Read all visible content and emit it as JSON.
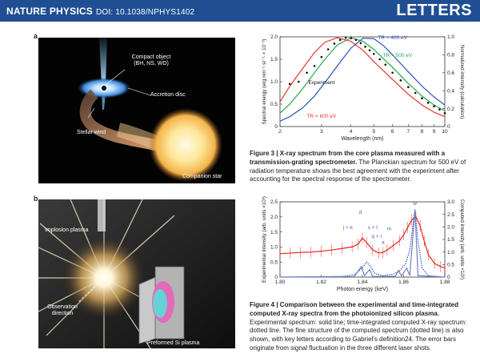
{
  "header": {
    "journal": "NATURE PHYSICS",
    "doi": "DOI: 10.1038/NPHYS1402",
    "section": "LETTERS",
    "bg_color": "#1f4e93"
  },
  "panel_a": {
    "label": "a",
    "compact_object": "Compact object\n(BH, NS, WD)",
    "accretion_disc": "Accretion disc",
    "stellar_wind": "Stellar wind",
    "companion_star": "Companion star"
  },
  "panel_b": {
    "label": "b",
    "implosion_plasma": "Implosion plasma",
    "observation_direction": "Observation\ndirection",
    "preformed_plasma": "Preformed Si plasma"
  },
  "figure3": {
    "caption_title": "Figure 3 | X-ray spectrum from the core plasma measured with a transmission-grating spectrometer.",
    "caption_body": " The Planckian spectrum for 500 eV of radiation temperature shows the best agreement with the experiment after accounting for the spectral response of the spectrometer."
  },
  "figure4": {
    "caption_title": "Figure 4 | Comparison between the experimental and time-integrated computed X-ray spectra from the photoionized silicon plasma.",
    "caption_body": " Experimental spectrum: solid line; time-integrated computed X-ray spectrum: dotted line. The fine structure of the computed spectrum (dotted line) is also shown, with key letters according to Gabriel's definition24. The error bars originate from signal fluctuation in the three different laser shots."
  },
  "chart_data": [
    {
      "type": "line",
      "xlabel": "Wavelength (nm)",
      "ylabel": "Spectral energy (erg nm⁻¹ sr⁻¹ × 10⁻³)",
      "y2label": "Normalized intensity (calculation)",
      "x_scale": "log",
      "xlim": [
        2,
        10
      ],
      "ylim": [
        0,
        2.0
      ],
      "y2lim": [
        0,
        1.0
      ],
      "x_ticks": [
        2,
        3,
        4,
        5,
        6,
        7,
        8,
        9,
        10
      ],
      "y_ticks": [
        "0",
        "0.5",
        "1.0",
        "1.5",
        "2.0"
      ],
      "y2_ticks": [
        "0",
        "0.2",
        "0.4",
        "0.6",
        "0.8",
        "1.0"
      ],
      "grid": false,
      "series": [
        {
          "name": "TR = 600 eV",
          "color": "#e8362a",
          "peak_x": 3.5,
          "points": [
            [
              2.0,
              0.55
            ],
            [
              2.2,
              0.9
            ],
            [
              2.5,
              1.3
            ],
            [
              2.8,
              1.65
            ],
            [
              3.1,
              1.88
            ],
            [
              3.5,
              1.98
            ],
            [
              4.0,
              1.9
            ],
            [
              4.5,
              1.7
            ],
            [
              5.0,
              1.45
            ],
            [
              6.0,
              1.05
            ],
            [
              7.0,
              0.72
            ],
            [
              8.0,
              0.48
            ],
            [
              9.0,
              0.32
            ],
            [
              10.0,
              0.22
            ]
          ]
        },
        {
          "name": "TR = 500 eV",
          "color": "#2aa54a",
          "peak_x": 4.0,
          "points": [
            [
              2.0,
              0.3
            ],
            [
              2.2,
              0.5
            ],
            [
              2.5,
              0.85
            ],
            [
              2.8,
              1.2
            ],
            [
              3.1,
              1.5
            ],
            [
              3.5,
              1.82
            ],
            [
              4.0,
              1.98
            ],
            [
              4.5,
              1.9
            ],
            [
              5.0,
              1.72
            ],
            [
              6.0,
              1.32
            ],
            [
              7.0,
              0.96
            ],
            [
              8.0,
              0.68
            ],
            [
              9.0,
              0.48
            ],
            [
              10.0,
              0.35
            ]
          ]
        },
        {
          "name": "TR = 400 eV",
          "color": "#2b54b8",
          "peak_x": 4.6,
          "points": [
            [
              2.0,
              0.12
            ],
            [
              2.2,
              0.22
            ],
            [
              2.5,
              0.42
            ],
            [
              2.8,
              0.68
            ],
            [
              3.1,
              0.98
            ],
            [
              3.5,
              1.35
            ],
            [
              4.0,
              1.75
            ],
            [
              4.5,
              1.97
            ],
            [
              5.0,
              1.96
            ],
            [
              5.5,
              1.8
            ],
            [
              6.0,
              1.6
            ],
            [
              7.0,
              1.22
            ],
            [
              8.0,
              0.9
            ],
            [
              9.0,
              0.66
            ],
            [
              10.0,
              0.48
            ]
          ]
        },
        {
          "name": "Experiment",
          "style": "dots",
          "color": "#111111",
          "points": [
            [
              2.2,
              0.95
            ],
            [
              2.4,
              1.0
            ],
            [
              2.6,
              1.2
            ],
            [
              2.8,
              1.35
            ],
            [
              3.0,
              1.55
            ],
            [
              3.2,
              1.72
            ],
            [
              3.4,
              1.85
            ],
            [
              3.6,
              1.93
            ],
            [
              3.8,
              1.98
            ],
            [
              4.0,
              1.97
            ],
            [
              4.2,
              1.93
            ],
            [
              4.4,
              1.86
            ],
            [
              4.6,
              1.78
            ],
            [
              4.8,
              1.7
            ],
            [
              5.0,
              1.62
            ],
            [
              5.3,
              1.5
            ],
            [
              5.6,
              1.38
            ],
            [
              6.0,
              1.2
            ],
            [
              6.5,
              1.03
            ],
            [
              7.0,
              0.88
            ],
            [
              7.5,
              0.75
            ],
            [
              8.0,
              0.63
            ],
            [
              8.5,
              0.53
            ],
            [
              9.0,
              0.45
            ],
            [
              9.5,
              0.38
            ],
            [
              10.0,
              0.3
            ]
          ]
        }
      ],
      "annotations": [
        {
          "text": "TR = 400 eV",
          "x": 6.0,
          "y": 1.95,
          "color": "#2b54b8"
        },
        {
          "text": "TR = 500 eV",
          "x": 6.3,
          "y": 1.55,
          "color": "#2aa54a"
        },
        {
          "text": "Experiment",
          "x": 3.0,
          "y": 0.95,
          "color": "#111111"
        },
        {
          "text": "TR = 600 eV",
          "x": 3.0,
          "y": 0.2,
          "color": "#e8362a"
        }
      ]
    },
    {
      "type": "line",
      "xlabel": "Photon energy (keV)",
      "ylabel": "Experimental intensity (arb. units ×10³)",
      "y2label": "Computed intensity (arb. units ×10²)",
      "xlim": [
        1.8,
        1.88
      ],
      "ylim": [
        0,
        2.5
      ],
      "y2lim": [
        0,
        3.0
      ],
      "x_ticks": [
        "1.80",
        "1.82",
        "1.84",
        "1.86",
        "1.88"
      ],
      "y_ticks": [
        "0",
        "0.5",
        "1.0",
        "1.5",
        "2.0",
        "2.5"
      ],
      "y2_ticks": [
        "0",
        "0.5",
        "1.0",
        "1.5",
        "2.0",
        "2.5",
        "3.0"
      ],
      "grid": false,
      "series": [
        {
          "name": "Experimental",
          "style": "solid",
          "color": "#e8231f",
          "points": [
            [
              1.8,
              0.78
            ],
            [
              1.805,
              0.8
            ],
            [
              1.81,
              0.82
            ],
            [
              1.815,
              0.83
            ],
            [
              1.82,
              0.86
            ],
            [
              1.825,
              0.9
            ],
            [
              1.83,
              0.95
            ],
            [
              1.835,
              1.0
            ],
            [
              1.838,
              1.1
            ],
            [
              1.84,
              1.3
            ],
            [
              1.842,
              1.15
            ],
            [
              1.845,
              0.9
            ],
            [
              1.848,
              0.8
            ],
            [
              1.85,
              0.82
            ],
            [
              1.852,
              0.9
            ],
            [
              1.855,
              1.05
            ],
            [
              1.858,
              1.2
            ],
            [
              1.86,
              1.4
            ],
            [
              1.862,
              1.65
            ],
            [
              1.864,
              1.9
            ],
            [
              1.866,
              2.0
            ],
            [
              1.868,
              1.7
            ],
            [
              1.87,
              1.2
            ],
            [
              1.872,
              0.75
            ],
            [
              1.875,
              0.45
            ],
            [
              1.878,
              0.35
            ],
            [
              1.88,
              0.3
            ]
          ]
        },
        {
          "name": "Computed",
          "style": "dotted",
          "color": "#2b3f9e",
          "points": [
            [
              1.8,
              0.0
            ],
            [
              1.83,
              0.02
            ],
            [
              1.836,
              0.08
            ],
            [
              1.84,
              0.3
            ],
            [
              1.842,
              0.5
            ],
            [
              1.844,
              0.35
            ],
            [
              1.846,
              0.12
            ],
            [
              1.85,
              0.05
            ],
            [
              1.855,
              0.1
            ],
            [
              1.858,
              0.2
            ],
            [
              1.861,
              0.45
            ],
            [
              1.863,
              0.9
            ],
            [
              1.8655,
              2.25
            ],
            [
              1.867,
              1.2
            ],
            [
              1.869,
              0.3
            ],
            [
              1.872,
              0.05
            ],
            [
              1.88,
              0.0
            ]
          ]
        },
        {
          "name": "Computed fine structure",
          "style": "solid",
          "color": "#6c7ec4",
          "points": [
            [
              1.8,
              0.0
            ],
            [
              1.836,
              0.02
            ],
            [
              1.8395,
              0.35
            ],
            [
              1.841,
              0.05
            ],
            [
              1.8435,
              0.25
            ],
            [
              1.845,
              0.02
            ],
            [
              1.856,
              0.03
            ],
            [
              1.8575,
              0.22
            ],
            [
              1.859,
              0.04
            ],
            [
              1.8615,
              0.3
            ],
            [
              1.863,
              0.05
            ],
            [
              1.8655,
              2.25
            ],
            [
              1.867,
              0.05
            ],
            [
              1.88,
              0.0
            ]
          ]
        }
      ],
      "annotations": [
        {
          "text": "j + k",
          "x": 1.833,
          "y": 1.6,
          "color": "#5560b8"
        },
        {
          "text": "d",
          "x": 1.839,
          "y": 2.1,
          "color": "#5560b8"
        },
        {
          "text": "s + t",
          "x": 1.845,
          "y": 1.6,
          "color": "#5560b8"
        },
        {
          "text": "m",
          "x": 1.853,
          "y": 1.55,
          "color": "#5560b8"
        },
        {
          "text": "q + r",
          "x": 1.847,
          "y": 1.3,
          "color": "#5560b8"
        },
        {
          "text": "a",
          "x": 1.85,
          "y": 1.1,
          "color": "#5560b8"
        },
        {
          "text": "w",
          "x": 1.8655,
          "y": 2.4,
          "color": "#5560b8"
        }
      ]
    }
  ]
}
